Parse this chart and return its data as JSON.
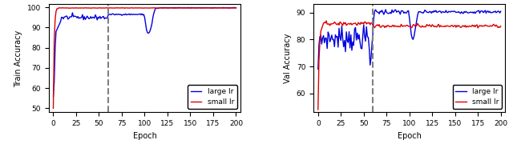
{
  "fig_width": 6.4,
  "fig_height": 1.8,
  "dpi": 100,
  "vline_epoch": 60,
  "vline_color": "gray",
  "vline_style": "--",
  "vline_lw": 1.5,
  "blue_color": "#0000dd",
  "red_color": "#dd0000",
  "left_ylabel": "Train Accuracy",
  "right_ylabel": "Val Accuracy",
  "xlabel": "Epoch",
  "xlim": [
    -5,
    205
  ],
  "xticks": [
    0,
    25,
    50,
    75,
    100,
    125,
    150,
    175,
    200
  ],
  "left_ylim": [
    48,
    101.5
  ],
  "left_yticks": [
    50,
    60,
    70,
    80,
    90,
    100
  ],
  "right_ylim": [
    53,
    93
  ],
  "right_yticks": [
    60,
    70,
    80,
    90
  ],
  "seed": 42
}
